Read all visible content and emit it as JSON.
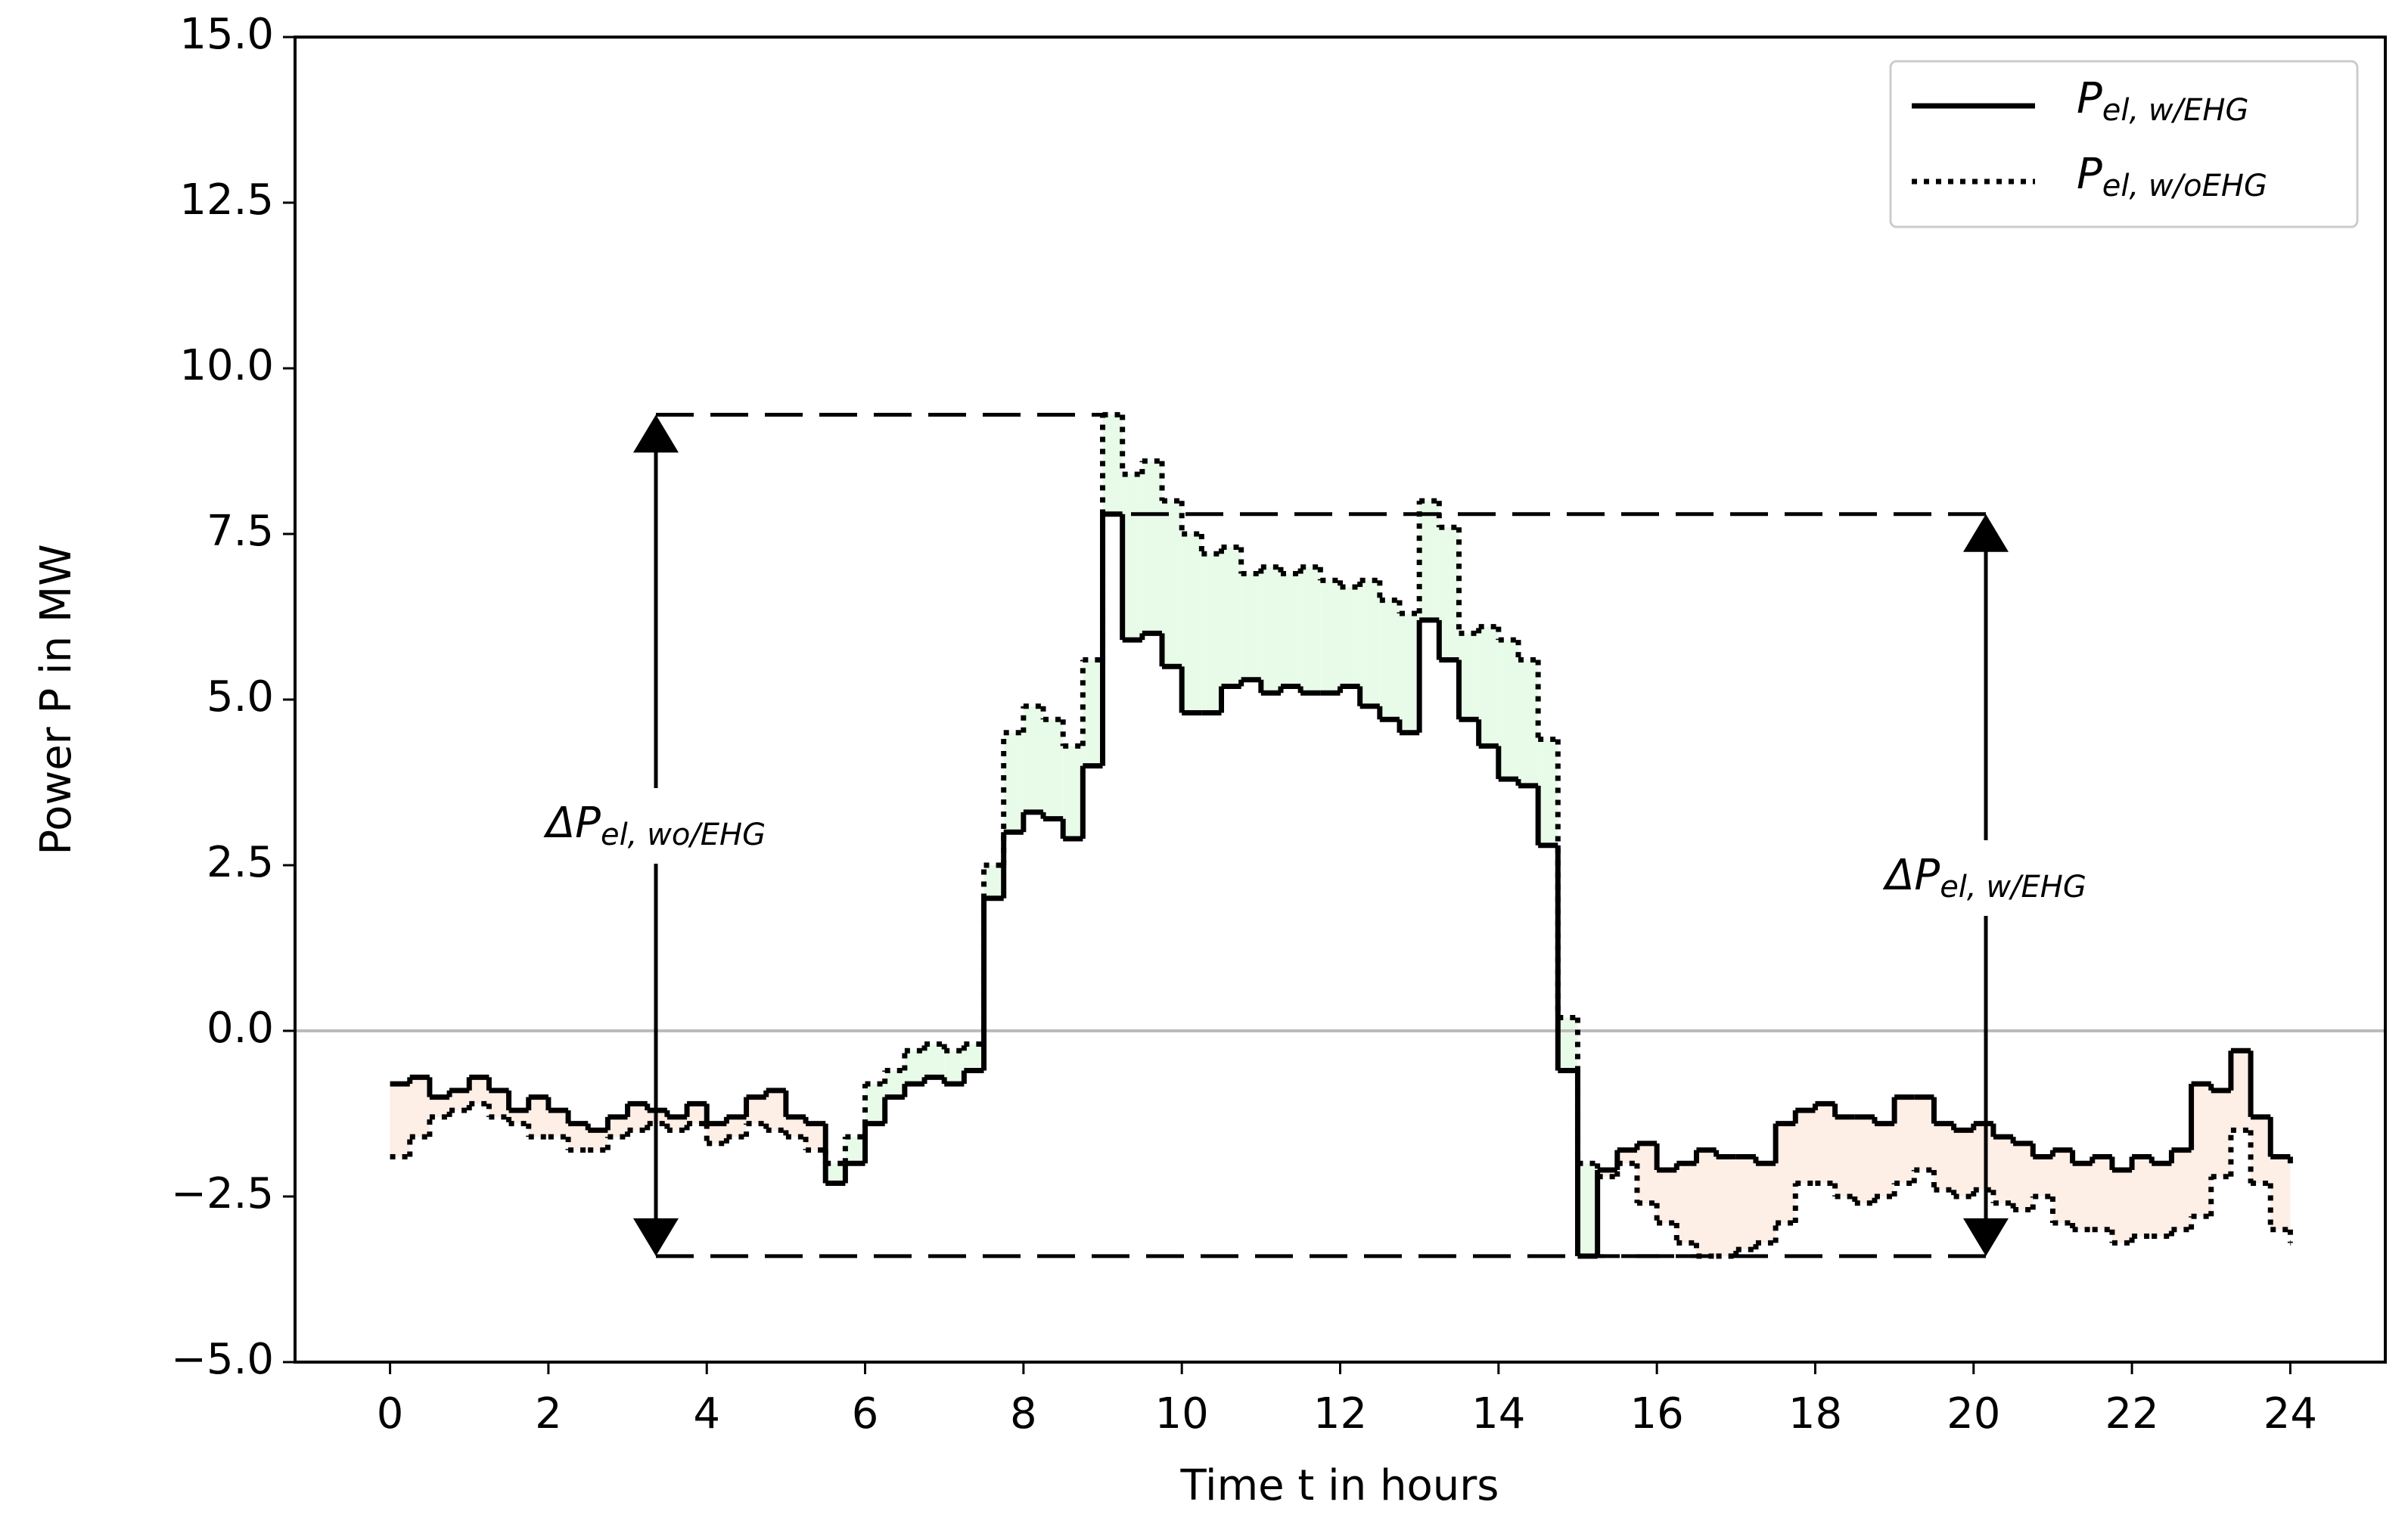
{
  "chart_data": {
    "type": "step",
    "xlabel": "Time t in hours",
    "ylabel": "Power P in MW",
    "x": [
      0,
      0.25,
      0.5,
      0.75,
      1,
      1.25,
      1.5,
      1.75,
      2,
      2.25,
      2.5,
      2.75,
      3,
      3.25,
      3.5,
      3.75,
      4,
      4.25,
      4.5,
      4.75,
      5,
      5.25,
      5.5,
      5.75,
      6,
      6.25,
      6.5,
      6.75,
      7,
      7.25,
      7.5,
      7.75,
      8,
      8.25,
      8.5,
      8.75,
      9,
      9.25,
      9.5,
      9.75,
      10,
      10.25,
      10.5,
      10.75,
      11,
      11.25,
      11.5,
      11.75,
      12,
      12.25,
      12.5,
      12.75,
      13,
      13.25,
      13.5,
      13.75,
      14,
      14.25,
      14.5,
      14.75,
      15,
      15.25,
      15.5,
      15.75,
      16,
      16.25,
      16.5,
      16.75,
      17,
      17.25,
      17.5,
      17.75,
      18,
      18.25,
      18.5,
      18.75,
      19,
      19.25,
      19.5,
      19.75,
      20,
      20.25,
      20.5,
      20.75,
      21,
      21.25,
      21.5,
      21.75,
      22,
      22.25,
      22.5,
      22.75,
      23,
      23.25,
      23.5,
      23.75,
      24
    ],
    "series": [
      {
        "name": "Pel, w/EHG",
        "color": "#000000",
        "style": "solid",
        "values": [
          -0.8,
          -0.7,
          -1.0,
          -0.9,
          -0.7,
          -0.9,
          -1.2,
          -1.0,
          -1.2,
          -1.4,
          -1.5,
          -1.3,
          -1.1,
          -1.2,
          -1.3,
          -1.1,
          -1.4,
          -1.3,
          -1.0,
          -0.9,
          -1.3,
          -1.4,
          -2.3,
          -2.0,
          -1.4,
          -1.0,
          -0.8,
          -0.7,
          -0.8,
          -0.6,
          2.0,
          3.0,
          3.3,
          3.2,
          2.9,
          4.0,
          7.8,
          5.9,
          6.0,
          5.5,
          4.8,
          4.8,
          5.2,
          5.3,
          5.1,
          5.2,
          5.1,
          5.1,
          5.2,
          4.9,
          4.7,
          4.5,
          6.2,
          5.6,
          4.7,
          4.3,
          3.8,
          3.7,
          2.8,
          -0.6,
          -3.4,
          -2.1,
          -1.8,
          -1.7,
          -2.1,
          -2.0,
          -1.8,
          -1.9,
          -1.9,
          -2.0,
          -1.4,
          -1.2,
          -1.1,
          -1.3,
          -1.3,
          -1.4,
          -1.0,
          -1.0,
          -1.4,
          -1.5,
          -1.4,
          -1.6,
          -1.7,
          -1.9,
          -1.8,
          -2.0,
          -1.9,
          -2.1,
          -1.9,
          -2.0,
          -1.8,
          -0.8,
          -0.9,
          -0.3,
          -1.3,
          -1.9,
          -2.0
        ]
      },
      {
        "name": "Pel, w/oEHG",
        "color": "#000000",
        "style": "dotted",
        "values": [
          -1.9,
          -1.6,
          -1.3,
          -1.2,
          -1.1,
          -1.3,
          -1.4,
          -1.6,
          -1.6,
          -1.8,
          -1.8,
          -1.6,
          -1.5,
          -1.4,
          -1.5,
          -1.4,
          -1.7,
          -1.6,
          -1.4,
          -1.5,
          -1.6,
          -1.8,
          -2.0,
          -1.6,
          -0.8,
          -0.6,
          -0.3,
          -0.2,
          -0.3,
          -0.2,
          2.5,
          4.5,
          4.9,
          4.7,
          4.3,
          5.6,
          9.3,
          8.4,
          8.6,
          8.0,
          7.5,
          7.2,
          7.3,
          6.9,
          7.0,
          6.9,
          7.0,
          6.8,
          6.7,
          6.8,
          6.5,
          6.3,
          8.0,
          7.6,
          6.0,
          6.1,
          5.9,
          5.6,
          4.4,
          0.2,
          -2.0,
          -2.2,
          -2.0,
          -2.6,
          -2.9,
          -3.2,
          -3.4,
          -3.4,
          -3.3,
          -3.2,
          -2.9,
          -2.3,
          -2.3,
          -2.5,
          -2.6,
          -2.5,
          -2.3,
          -2.1,
          -2.4,
          -2.5,
          -2.4,
          -2.6,
          -2.7,
          -2.5,
          -2.9,
          -3.0,
          -3.0,
          -3.2,
          -3.1,
          -3.1,
          -3.0,
          -2.8,
          -2.2,
          -1.5,
          -2.3,
          -3.0,
          -3.2
        ]
      }
    ],
    "fill_colors": {
      "above": "#e8fbe8",
      "below": "#fdeee6"
    },
    "annotations": [
      "ΔPel, wo/EHG",
      "ΔPel, w/EHG"
    ],
    "xlim": [
      -1.2,
      25.2
    ],
    "ylim": [
      -5,
      15
    ],
    "xticks": [
      0,
      2,
      4,
      6,
      8,
      10,
      12,
      14,
      16,
      18,
      20,
      22,
      24
    ],
    "yticks": [
      {
        "value": -5,
        "label": "−5.0"
      },
      {
        "value": -2.5,
        "label": "−2.5"
      },
      {
        "value": 0,
        "label": "0.0"
      },
      {
        "value": 2.5,
        "label": "2.5"
      },
      {
        "value": 5,
        "label": "5.0"
      },
      {
        "value": 7.5,
        "label": "7.5"
      },
      {
        "value": 10,
        "label": "10.0"
      },
      {
        "value": 12.5,
        "label": "12.5"
      },
      {
        "value": 15,
        "label": "15.0"
      }
    ],
    "grid": false,
    "zero_line": true,
    "legend": "upper right"
  }
}
